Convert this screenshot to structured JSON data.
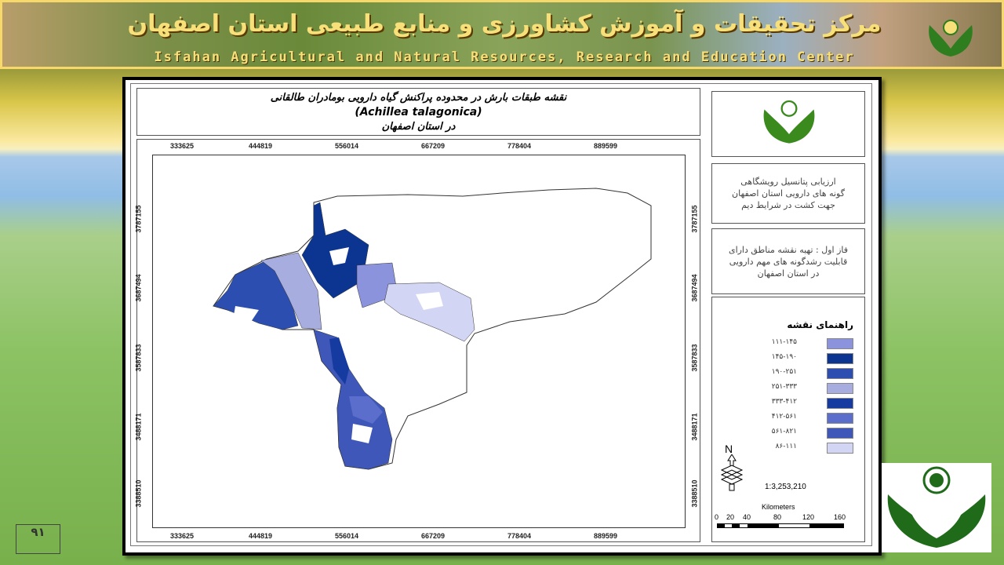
{
  "header": {
    "title_fa": "مرکز تحقیقات و آموزش کشاورزی و منابع طبیعی استان اصفهان",
    "title_en": "Isfahan Agricultural and Natural Resources, Research and Education Center"
  },
  "map": {
    "title_line1": "نقشه طبقات بارش در محدوده پراکنش گیاه دارویی بومادران طالقانی",
    "title_line2": "(Achillea talagonica)",
    "title_line3": "در استان اصفهان",
    "x_ticks": [
      "333625",
      "444819",
      "556014",
      "667209",
      "778404",
      "889599"
    ],
    "y_ticks": [
      "3787155",
      "3687494",
      "3587833",
      "3488171",
      "3388510"
    ]
  },
  "panel": {
    "project_text": [
      "ارزیابی پتانسیل رویشگاهی",
      "گونه های دارویی استان اصفهان",
      "جهت کشت در شرایط دیم"
    ],
    "phase_text": [
      "فاز اول : تهیه نقشه مناطق دارای",
      "قابلیت رشدگونه های مهم دارویی",
      "در استان اصفهان"
    ],
    "legend_title": "راهنمای نقشه",
    "legend": [
      {
        "label": "۱۱۱-۱۴۵",
        "color": "#8a93dc"
      },
      {
        "label": "۱۴۵-۱۹۰",
        "color": "#0c3592"
      },
      {
        "label": "۱۹۰-۲۵۱",
        "color": "#2c4eb0"
      },
      {
        "label": "۲۵۱-۳۳۳",
        "color": "#a7addf"
      },
      {
        "label": "۳۳۳-۴۱۲",
        "color": "#163ba0"
      },
      {
        "label": "۴۱۲-۵۶۱",
        "color": "#5c6ecb"
      },
      {
        "label": "۵۶۱-۸۲۱",
        "color": "#3e57b8"
      },
      {
        "label": "۸۶-۱۱۱",
        "color": "#d3d5f5"
      }
    ],
    "north_label": "N",
    "scale_text": "1:3,253,210",
    "scalebar_unit": "Kilometers",
    "scalebar_ticks": [
      "0",
      "20",
      "40",
      "80",
      "120",
      "160"
    ]
  },
  "footer": {
    "page_number": "۹۱"
  }
}
